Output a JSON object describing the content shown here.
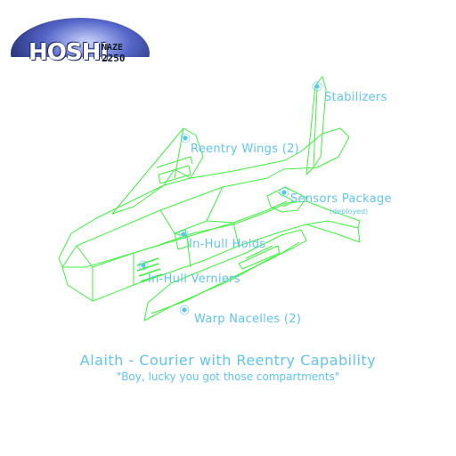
{
  "logo": {
    "word": "HOSHI",
    "top": "NAZE",
    "bottom": "2250"
  },
  "labels": {
    "stabilizers": "Stabilizers",
    "reentry_wings": "Reentry Wings (2)",
    "sensors_package": "Sensors Package",
    "sensors_note": "(deployed)",
    "in_hull_holds": "In-Hull Holds",
    "in_hull_verniers": "In-Hull Verniers",
    "warp_nacelles": "Warp Nacelles (2)"
  },
  "title": "Alaith - Courier with Reentry Capability",
  "quote": "\"Boy, lucky you got those compartments\"",
  "colors": {
    "wireframe": "#3df23d",
    "label": "#5fc4f0",
    "logo_ring": "#1c2a6a"
  }
}
